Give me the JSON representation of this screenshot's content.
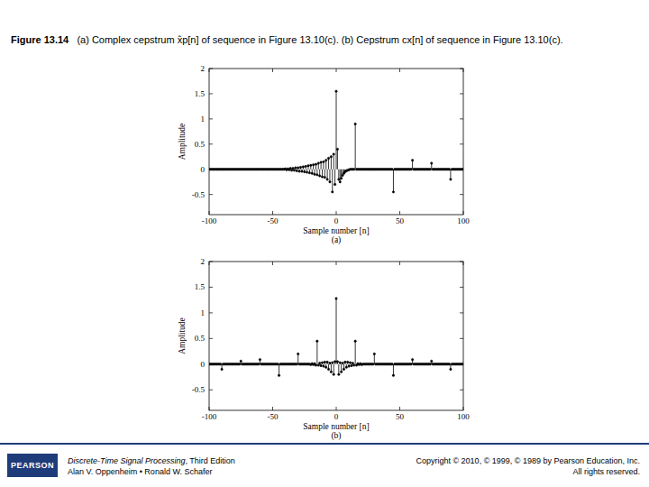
{
  "caption": {
    "label": "Figure 13.14",
    "text": "(a) Complex cepstrum x̂p[n] of sequence in Figure 13.10(c). (b) Cepstrum cx[n] of sequence in Figure 13.10(c)."
  },
  "footer": {
    "logo": "PEARSON",
    "book_title": "Discrete-Time Signal Processing",
    "edition": ", Third Edition",
    "authors": "Alan V. Oppenheim • Ronald W. Schafer",
    "copyright": "Copyright © 2010, © 1999, © 1989 by Pearson Education, Inc.",
    "rights": "All rights reserved."
  },
  "chart_data": [
    {
      "type": "stem",
      "title": "(a)",
      "x_label": "Sample number [n]",
      "y_label": "Amplitude",
      "xlim": [
        -100,
        100
      ],
      "xticks": [
        -100,
        -50,
        0,
        50,
        100
      ],
      "ylim": [
        -0.9,
        2
      ],
      "yticks": [
        -0.5,
        0,
        0.5,
        1,
        1.5,
        2
      ],
      "grid": false,
      "marker": "dot",
      "color": "#000000",
      "x": [
        -100,
        -99,
        -98,
        -97,
        -96,
        -95,
        -94,
        -93,
        -92,
        -91,
        -90,
        -89,
        -88,
        -87,
        -86,
        -85,
        -84,
        -83,
        -82,
        -81,
        -80,
        -79,
        -78,
        -77,
        -76,
        -75,
        -74,
        -73,
        -72,
        -71,
        -70,
        -69,
        -68,
        -67,
        -66,
        -65,
        -64,
        -63,
        -62,
        -61,
        -60,
        -59,
        -58,
        -57,
        -56,
        -55,
        -54,
        -53,
        -52,
        -51,
        -50,
        -49,
        -48,
        -47,
        -46,
        -45,
        -44,
        -43,
        -42,
        -41,
        -40,
        -39,
        -38,
        -37,
        -36,
        -35,
        -34,
        -33,
        -32,
        -31,
        -30,
        -29,
        -28,
        -27,
        -26,
        -25,
        -24,
        -23,
        -22,
        -21,
        -20,
        -19,
        -18,
        -17,
        -16,
        -15,
        -14,
        -13,
        -12,
        -11,
        -10,
        -9,
        -8,
        -7,
        -6,
        -5,
        -4,
        -3,
        -2,
        -1,
        0,
        1,
        2,
        3,
        4,
        5,
        6,
        7,
        8,
        9,
        10,
        11,
        12,
        13,
        14,
        15,
        16,
        17,
        18,
        19,
        20,
        21,
        22,
        23,
        24,
        25,
        26,
        27,
        28,
        29,
        30,
        31,
        32,
        33,
        34,
        35,
        36,
        37,
        38,
        39,
        40,
        41,
        42,
        43,
        44,
        45,
        46,
        47,
        48,
        49,
        50,
        51,
        52,
        53,
        54,
        55,
        56,
        57,
        58,
        59,
        60,
        61,
        62,
        63,
        64,
        65,
        66,
        67,
        68,
        69,
        70,
        71,
        72,
        73,
        74,
        75,
        76,
        77,
        78,
        79,
        80,
        81,
        82,
        83,
        84,
        85,
        86,
        87,
        88,
        89,
        90,
        91,
        92,
        93,
        94,
        95,
        96,
        97,
        98,
        99,
        100
      ],
      "values": [
        0,
        0,
        0,
        0,
        0,
        0,
        0,
        0,
        0,
        0,
        0,
        0,
        0,
        0,
        0,
        0,
        0,
        0,
        0,
        0,
        0,
        0,
        0,
        0,
        0,
        0,
        0,
        0,
        0,
        0,
        0,
        0,
        0,
        0,
        0,
        0,
        0,
        0,
        0,
        0,
        0,
        0,
        0,
        0,
        0,
        0,
        0,
        0,
        0,
        0,
        0,
        0,
        0,
        0,
        0,
        0,
        0,
        0,
        0,
        0,
        0.01,
        -0.01,
        0.01,
        -0.01,
        0.02,
        -0.02,
        0.02,
        -0.02,
        0.03,
        -0.03,
        0.03,
        -0.04,
        0.04,
        -0.04,
        0.05,
        -0.05,
        0.06,
        -0.06,
        0.07,
        -0.07,
        0.08,
        -0.08,
        0.09,
        -0.1,
        0.1,
        -0.11,
        0.12,
        -0.13,
        0.14,
        -0.15,
        0.15,
        -0.16,
        0.18,
        -0.2,
        0.22,
        -0.25,
        0.25,
        -0.45,
        0.3,
        -0.3,
        1.55,
        0.4,
        -0.2,
        -0.25,
        -0.18,
        -0.12,
        -0.08,
        -0.05,
        -0.03,
        -0.02,
        -0.01,
        0,
        0,
        0,
        0,
        0.9,
        0,
        0,
        0,
        0,
        0,
        0,
        0,
        0,
        0,
        0,
        0,
        0,
        0,
        0,
        0,
        0,
        0,
        0,
        0,
        0,
        0,
        0,
        0,
        0,
        0,
        0,
        0,
        0,
        0,
        -0.45,
        0,
        0,
        0,
        0,
        0,
        0,
        0,
        0,
        0,
        0,
        0,
        0,
        0,
        0,
        0.18,
        0,
        0,
        0,
        0,
        0,
        0,
        0,
        0,
        0,
        0,
        0,
        0,
        0,
        0,
        0.12,
        0,
        0,
        0,
        0,
        0,
        0,
        0,
        0,
        0,
        0,
        0,
        0,
        0,
        0,
        -0.2,
        0,
        0,
        0,
        0,
        0,
        0,
        0,
        0,
        0,
        0
      ]
    },
    {
      "type": "stem",
      "title": "(b)",
      "x_label": "Sample number [n]",
      "y_label": "Amplitude",
      "xlim": [
        -100,
        100
      ],
      "xticks": [
        -100,
        -50,
        0,
        50,
        100
      ],
      "ylim": [
        -0.9,
        2
      ],
      "yticks": [
        -0.5,
        0,
        0.5,
        1,
        1.5,
        2
      ],
      "grid": false,
      "marker": "dot",
      "color": "#000000",
      "x": [
        -100,
        -99,
        -98,
        -97,
        -96,
        -95,
        -94,
        -93,
        -92,
        -91,
        -90,
        -89,
        -88,
        -87,
        -86,
        -85,
        -84,
        -83,
        -82,
        -81,
        -80,
        -79,
        -78,
        -77,
        -76,
        -75,
        -74,
        -73,
        -72,
        -71,
        -70,
        -69,
        -68,
        -67,
        -66,
        -65,
        -64,
        -63,
        -62,
        -61,
        -60,
        -59,
        -58,
        -57,
        -56,
        -55,
        -54,
        -53,
        -52,
        -51,
        -50,
        -49,
        -48,
        -47,
        -46,
        -45,
        -44,
        -43,
        -42,
        -41,
        -40,
        -39,
        -38,
        -37,
        -36,
        -35,
        -34,
        -33,
        -32,
        -31,
        -30,
        -29,
        -28,
        -27,
        -26,
        -25,
        -24,
        -23,
        -22,
        -21,
        -20,
        -19,
        -18,
        -17,
        -16,
        -15,
        -14,
        -13,
        -12,
        -11,
        -10,
        -9,
        -8,
        -7,
        -6,
        -5,
        -4,
        -3,
        -2,
        -1,
        0,
        1,
        2,
        3,
        4,
        5,
        6,
        7,
        8,
        9,
        10,
        11,
        12,
        13,
        14,
        15,
        16,
        17,
        18,
        19,
        20,
        21,
        22,
        23,
        24,
        25,
        26,
        27,
        28,
        29,
        30,
        31,
        32,
        33,
        34,
        35,
        36,
        37,
        38,
        39,
        40,
        41,
        42,
        43,
        44,
        45,
        46,
        47,
        48,
        49,
        50,
        51,
        52,
        53,
        54,
        55,
        56,
        57,
        58,
        59,
        60,
        61,
        62,
        63,
        64,
        65,
        66,
        67,
        68,
        69,
        70,
        71,
        72,
        73,
        74,
        75,
        76,
        77,
        78,
        79,
        80,
        81,
        82,
        83,
        84,
        85,
        86,
        87,
        88,
        89,
        90,
        91,
        92,
        93,
        94,
        95,
        96,
        97,
        98,
        99,
        100
      ],
      "values": [
        0,
        0,
        0,
        0,
        0,
        0,
        0,
        0,
        0,
        0,
        -0.1,
        0,
        0,
        0,
        0,
        0,
        0,
        0,
        0,
        0,
        0,
        0,
        0,
        0,
        0,
        0.06,
        0,
        0,
        0,
        0,
        0,
        0,
        0,
        0,
        0,
        0,
        0,
        0,
        0,
        0,
        0.09,
        0,
        0,
        0,
        0,
        0,
        0,
        0,
        0,
        0,
        0,
        0,
        0,
        0,
        0,
        -0.22,
        0,
        0,
        0,
        0,
        0,
        0,
        0,
        0,
        0,
        0,
        0,
        0,
        0,
        0,
        0.2,
        0,
        0,
        0,
        0,
        0,
        0,
        0,
        0,
        0,
        -0.01,
        0.01,
        -0.01,
        0.01,
        -0.02,
        0.45,
        -0.02,
        0.02,
        -0.03,
        0.03,
        -0.04,
        0.04,
        -0.06,
        0.04,
        -0.1,
        0.02,
        -0.15,
        0.03,
        -0.2,
        0.05,
        1.28,
        0.05,
        -0.2,
        0.03,
        -0.15,
        0.02,
        -0.1,
        0.04,
        -0.06,
        0.04,
        -0.04,
        0.03,
        -0.03,
        0.02,
        -0.02,
        0.45,
        -0.02,
        0.01,
        -0.01,
        0.01,
        -0.01,
        0,
        0,
        0,
        0,
        0,
        0,
        0,
        0,
        0,
        0.2,
        0,
        0,
        0,
        0,
        0,
        0,
        0,
        0,
        0,
        0,
        0,
        0,
        0,
        0,
        -0.22,
        0,
        0,
        0,
        0,
        0,
        0,
        0,
        0,
        0,
        0,
        0,
        0,
        0,
        0,
        0.09,
        0,
        0,
        0,
        0,
        0,
        0,
        0,
        0,
        0,
        0,
        0,
        0,
        0,
        0,
        0.06,
        0,
        0,
        0,
        0,
        0,
        0,
        0,
        0,
        0,
        0,
        0,
        0,
        0,
        0,
        -0.1,
        0,
        0,
        0,
        0,
        0,
        0,
        0,
        0,
        0,
        0
      ]
    }
  ]
}
